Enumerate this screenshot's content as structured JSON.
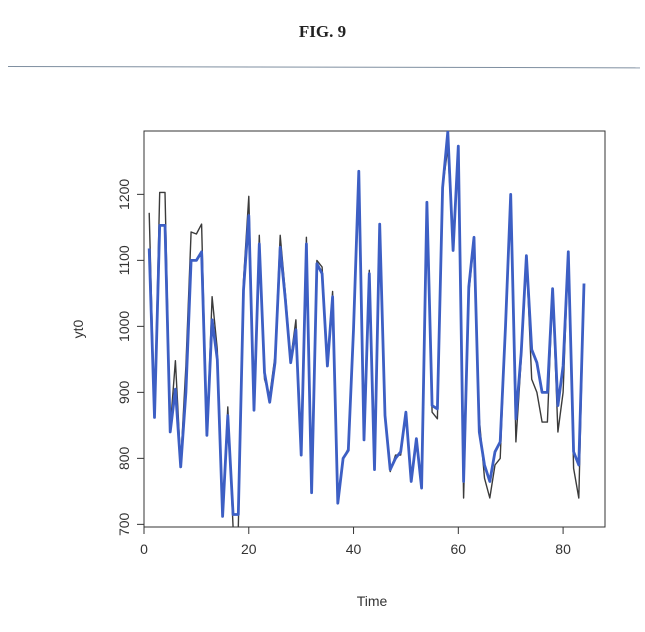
{
  "figure_title": "FIG. 9",
  "chart_data": {
    "type": "line",
    "xlabel": "Time",
    "ylabel": "yt0",
    "xlim": [
      0,
      88
    ],
    "ylim": [
      696,
      1296
    ],
    "x_ticks": [
      0,
      20,
      40,
      60,
      80
    ],
    "y_ticks": [
      700,
      800,
      900,
      1000,
      1100,
      1200
    ],
    "colors": {
      "series_0": "#3b3b3b",
      "series_1": "#3d5fc4"
    },
    "x": [
      1,
      2,
      3,
      4,
      5,
      6,
      7,
      8,
      9,
      10,
      11,
      12,
      13,
      14,
      15,
      16,
      17,
      18,
      19,
      20,
      21,
      22,
      23,
      24,
      25,
      26,
      27,
      28,
      29,
      30,
      31,
      32,
      33,
      34,
      35,
      36,
      37,
      38,
      39,
      40,
      41,
      42,
      43,
      44,
      45,
      46,
      47,
      48,
      49,
      50,
      51,
      52,
      53,
      54,
      55,
      56,
      57,
      58,
      59,
      60,
      61,
      62,
      63,
      64,
      65,
      66,
      67,
      68,
      69,
      70,
      71,
      72,
      73,
      74,
      75,
      76,
      77,
      78,
      79,
      80,
      81,
      82,
      83,
      84
    ],
    "series": [
      {
        "values": [
          1172,
          865,
          1203,
          1203,
          845,
          948,
          793,
          940,
          1143,
          1140,
          1155,
          835,
          1045,
          965,
          720,
          878,
          695,
          695,
          1070,
          1197,
          880,
          1138,
          920,
          895,
          955,
          1138,
          1050,
          950,
          1010,
          810,
          1135,
          750,
          1100,
          1090,
          945,
          1053,
          735,
          800,
          815,
          1000,
          1235,
          830,
          1085,
          785,
          1155,
          870,
          780,
          805,
          805,
          870,
          765,
          830,
          755,
          1185,
          870,
          860,
          1210,
          1270,
          1120,
          1270,
          740,
          1050,
          1130,
          860,
          770,
          740,
          790,
          800,
          1000,
          1195,
          825,
          950,
          1105,
          920,
          900,
          855,
          855,
          1055,
          840,
          900,
          1110,
          785,
          740,
          1065
        ]
      },
      {
        "values": [
          1118,
          862,
          1153,
          1153,
          840,
          905,
          787,
          900,
          1100,
          1100,
          1113,
          835,
          1010,
          950,
          712,
          865,
          715,
          715,
          1055,
          1168,
          873,
          1125,
          930,
          885,
          945,
          1120,
          1040,
          945,
          995,
          805,
          1125,
          748,
          1095,
          1080,
          940,
          1045,
          732,
          800,
          812,
          995,
          1235,
          828,
          1080,
          783,
          1155,
          865,
          783,
          800,
          810,
          870,
          765,
          830,
          755,
          1188,
          880,
          875,
          1210,
          1295,
          1115,
          1273,
          765,
          1060,
          1135,
          840,
          790,
          765,
          810,
          825,
          1000,
          1200,
          860,
          960,
          1107,
          965,
          945,
          900,
          900,
          1057,
          880,
          940,
          1113,
          810,
          790,
          1065
        ]
      }
    ]
  }
}
